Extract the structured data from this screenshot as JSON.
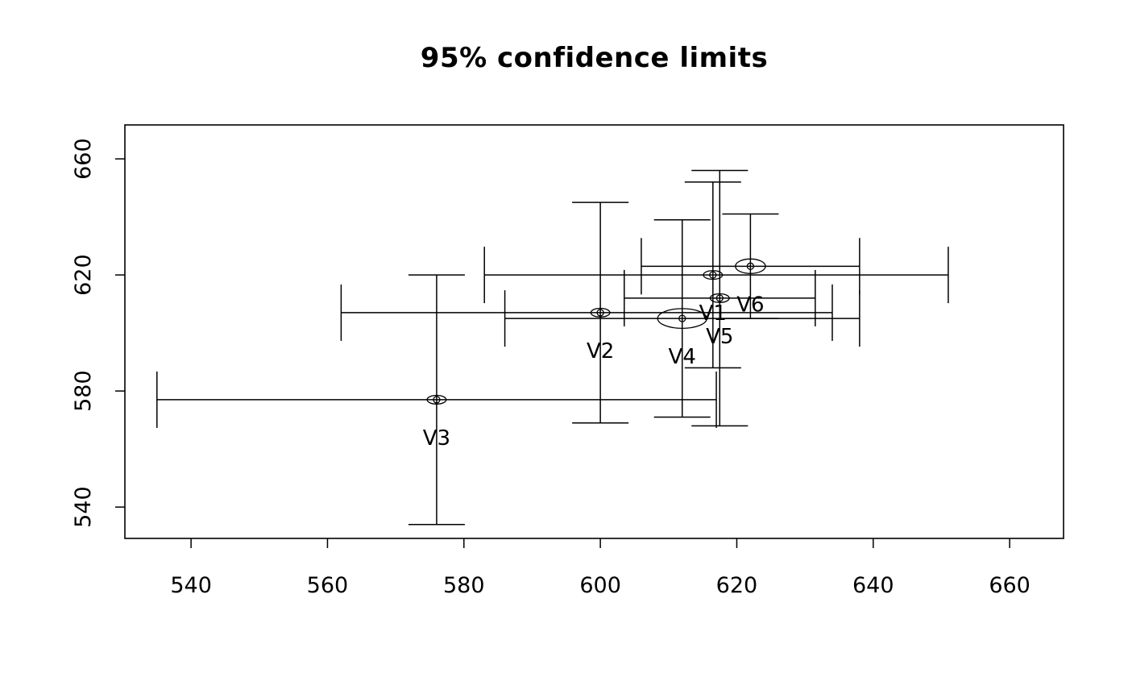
{
  "chart_data": {
    "type": "scatter",
    "title": "95% confidence limits",
    "xlabel": "",
    "ylabel": "",
    "xlim": [
      530.3,
      667.9
    ],
    "ylim": [
      529.2,
      671.7
    ],
    "x_ticks": [
      540,
      560,
      580,
      600,
      620,
      640,
      660
    ],
    "y_ticks": [
      540,
      580,
      620,
      660
    ],
    "grid": false,
    "legend": "none",
    "points": [
      {
        "label": "V1",
        "x": 616.5,
        "y": 620,
        "x_ci": [
          583,
          651
        ],
        "y_ci": [
          588,
          652
        ],
        "ellipse_rx": 1.4,
        "ellipse_ry": 1.5
      },
      {
        "label": "V2",
        "x": 600,
        "y": 607,
        "x_ci": [
          562,
          634
        ],
        "y_ci": [
          569,
          645
        ],
        "ellipse_rx": 1.4,
        "ellipse_ry": 1.5
      },
      {
        "label": "V3",
        "x": 576,
        "y": 577,
        "x_ci": [
          535,
          617
        ],
        "y_ci": [
          534,
          620
        ],
        "ellipse_rx": 1.4,
        "ellipse_ry": 1.5
      },
      {
        "label": "V4",
        "x": 612,
        "y": 605,
        "x_ci": [
          586,
          638
        ],
        "y_ci": [
          571,
          639
        ],
        "ellipse_rx": 3.6,
        "ellipse_ry": 3.4
      },
      {
        "label": "V5",
        "x": 617.5,
        "y": 612,
        "x_ci": [
          603.5,
          631.5
        ],
        "y_ci": [
          568,
          656
        ],
        "ellipse_rx": 1.4,
        "ellipse_ry": 1.5
      },
      {
        "label": "V6",
        "x": 622,
        "y": 623,
        "x_ci": [
          606,
          638
        ],
        "y_ci": [
          605,
          641
        ],
        "ellipse_rx": 2.2,
        "ellipse_ry": 2.5
      }
    ]
  },
  "colors": {
    "line": "#000000",
    "background": "#ffffff"
  }
}
